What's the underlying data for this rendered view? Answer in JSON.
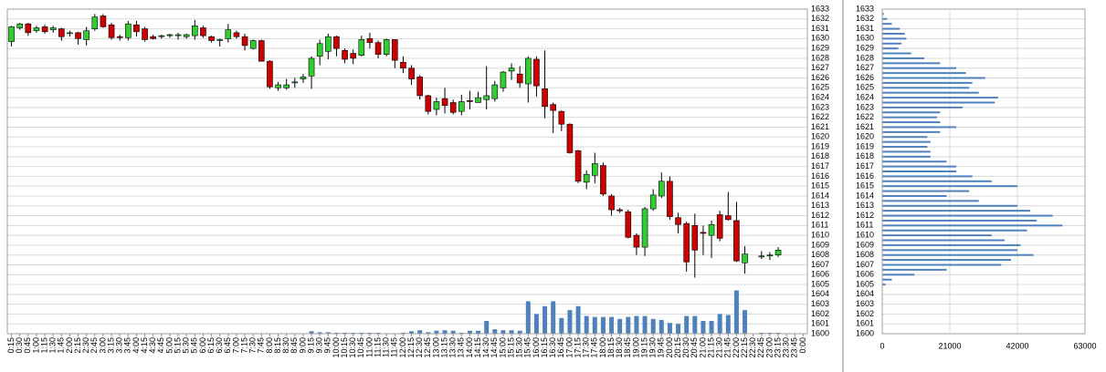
{
  "chart_data": [
    {
      "type": "candlestick",
      "categories": [
        "0:15",
        "0:30",
        "0:45",
        "1:00",
        "1:15",
        "1:30",
        "1:45",
        "2:00",
        "2:15",
        "2:30",
        "2:45",
        "3:00",
        "3:15",
        "3:30",
        "3:45",
        "4:00",
        "4:15",
        "4:30",
        "4:45",
        "5:00",
        "5:15",
        "5:30",
        "5:45",
        "6:00",
        "6:15",
        "6:30",
        "6:45",
        "7:00",
        "7:15",
        "7:30",
        "7:45",
        "8:00",
        "8:15",
        "8:30",
        "8:45",
        "9:00",
        "9:15",
        "9:30",
        "9:45",
        "10:00",
        "10:15",
        "10:30",
        "10:45",
        "11:00",
        "11:15",
        "11:30",
        "11:45",
        "12:00",
        "12:15",
        "12:30",
        "12:45",
        "13:00",
        "13:15",
        "13:30",
        "13:45",
        "14:00",
        "14:15",
        "14:30",
        "14:45",
        "15:00",
        "15:15",
        "15:30",
        "15:45",
        "16:00",
        "16:15",
        "16:30",
        "16:45",
        "17:00",
        "17:15",
        "17:30",
        "17:45",
        "18:00",
        "18:15",
        "18:30",
        "18:45",
        "19:00",
        "19:15",
        "19:30",
        "19:45",
        "20:00",
        "20:15",
        "20:30",
        "20:45",
        "21:00",
        "21:15",
        "21:30",
        "21:45",
        "22:00",
        "22:15",
        "22:30",
        "22:45",
        "23:00",
        "23:15",
        "23:30",
        "23:45",
        "0:00"
      ],
      "open": [
        1629.7,
        1631.1,
        1631.5,
        1630.8,
        1631.2,
        1630.9,
        1631.0,
        1630.6,
        1630.6,
        1629.9,
        1631.0,
        1632.3,
        1631.4,
        1630.2,
        1630.1,
        1631.4,
        1631.0,
        1630.2,
        1630.2,
        1630.3,
        1630.3,
        1630.2,
        1630.3,
        1631.1,
        1630.2,
        1629.9,
        1630.0,
        1630.6,
        1630.2,
        1629.0,
        1629.8,
        1627.7,
        1625.0,
        1625.0,
        1625.5,
        1625.9,
        1626.2,
        1628.2,
        1628.7,
        1630.2,
        1628.8,
        1628.5,
        1628.3,
        1630.0,
        1629.6,
        1628.4,
        1629.9,
        1627.6,
        1627.0,
        1626.1,
        1624.2,
        1622.8,
        1623.9,
        1623.5,
        1622.6,
        1623.7,
        1623.5,
        1623.8,
        1623.9,
        1625.0,
        1626.7,
        1626.4,
        1625.4,
        1627.9,
        1624.9,
        1623.3,
        1622.6,
        1621.3,
        1618.6,
        1615.4,
        1616.1,
        1617.1,
        1614.0,
        1612.6,
        1612.4,
        1610.0,
        1608.8,
        1612.7,
        1614.0,
        1615.5,
        1611.8,
        1611.2,
        1611.0,
        1610.3,
        1610.0,
        1612.1,
        1612.0,
        1611.5,
        1607.2,
        null,
        1607.8,
        1607.9,
        1608.0,
        null,
        null,
        null
      ],
      "high": [
        1631.3,
        1631.6,
        1631.6,
        1631.3,
        1631.4,
        1631.3,
        1631.1,
        1630.8,
        1630.7,
        1631.2,
        1632.5,
        1632.5,
        1631.6,
        1630.4,
        1631.8,
        1631.8,
        1631.2,
        1630.4,
        1630.4,
        1630.5,
        1630.6,
        1630.5,
        1631.9,
        1631.3,
        1630.3,
        1630.0,
        1631.5,
        1630.8,
        1630.5,
        1629.9,
        1629.9,
        1627.8,
        1625.6,
        1625.9,
        1626.0,
        1626.4,
        1628.2,
        1629.9,
        1630.5,
        1630.3,
        1629.0,
        1628.9,
        1630.3,
        1630.6,
        1629.8,
        1630.0,
        1629.9,
        1628.2,
        1627.3,
        1626.3,
        1624.3,
        1624.0,
        1625.0,
        1623.8,
        1624.3,
        1624.7,
        1624.6,
        1627.2,
        1625.7,
        1626.7,
        1627.5,
        1627.2,
        1628.2,
        1628.2,
        1628.8,
        1623.5,
        1622.7,
        1621.4,
        1618.7,
        1616.6,
        1618.4,
        1617.4,
        1614.2,
        1612.8,
        1612.6,
        1610.2,
        1612.9,
        1614.7,
        1616.4,
        1616.0,
        1612.3,
        1611.4,
        1612.2,
        1611.0,
        1611.5,
        1612.5,
        1614.4,
        1613.4,
        1608.9,
        null,
        1608.4,
        1608.3,
        1608.8,
        null,
        null,
        null
      ],
      "low": [
        1629.2,
        1630.9,
        1630.3,
        1630.6,
        1630.5,
        1630.6,
        1629.8,
        1630.2,
        1629.4,
        1629.3,
        1630.8,
        1631.1,
        1629.9,
        1629.8,
        1629.8,
        1630.2,
        1629.7,
        1629.9,
        1630.0,
        1630.1,
        1629.9,
        1630.0,
        1629.9,
        1630.1,
        1629.6,
        1629.2,
        1629.6,
        1630.0,
        1628.8,
        1628.9,
        1627.7,
        1624.9,
        1624.7,
        1624.8,
        1625.0,
        1625.5,
        1624.9,
        1627.3,
        1627.9,
        1628.2,
        1627.5,
        1627.4,
        1628.2,
        1629.0,
        1628.0,
        1628.2,
        1627.0,
        1626.5,
        1625.3,
        1623.8,
        1622.3,
        1622.2,
        1622.4,
        1622.3,
        1622.2,
        1622.8,
        1623.5,
        1622.8,
        1623.6,
        1624.6,
        1625.8,
        1625.0,
        1623.5,
        1624.1,
        1621.9,
        1620.4,
        1620.6,
        1618.3,
        1615.3,
        1614.7,
        1615.3,
        1614.0,
        1612.0,
        1612.3,
        1609.7,
        1608.0,
        1607.9,
        1612.5,
        1613.8,
        1611.6,
        1610.2,
        1606.3,
        1605.7,
        1608.0,
        1607.7,
        1609.4,
        1611.5,
        1607.3,
        1606.1,
        null,
        1607.6,
        1607.5,
        1607.8,
        null,
        null,
        null
      ],
      "close": [
        1631.2,
        1631.5,
        1630.6,
        1631.1,
        1630.7,
        1631.1,
        1630.2,
        1630.6,
        1630.0,
        1630.8,
        1632.2,
        1631.2,
        1630.1,
        1630.1,
        1631.5,
        1630.7,
        1629.9,
        1630.0,
        1630.3,
        1630.4,
        1630.4,
        1630.4,
        1631.3,
        1630.3,
        1629.8,
        1629.9,
        1630.9,
        1630.2,
        1629.3,
        1629.8,
        1627.7,
        1625.1,
        1625.3,
        1625.3,
        1625.6,
        1626.1,
        1628.0,
        1629.5,
        1630.2,
        1629.0,
        1627.9,
        1628.0,
        1629.9,
        1629.6,
        1628.4,
        1629.9,
        1627.8,
        1627.0,
        1625.9,
        1624.2,
        1622.6,
        1623.6,
        1623.2,
        1622.5,
        1623.6,
        1623.6,
        1624.0,
        1624.2,
        1625.3,
        1626.6,
        1627.0,
        1625.5,
        1628.0,
        1625.2,
        1623.1,
        1622.7,
        1621.3,
        1618.4,
        1615.5,
        1616.2,
        1617.3,
        1614.2,
        1612.6,
        1612.5,
        1609.8,
        1608.8,
        1612.7,
        1614.1,
        1615.5,
        1611.9,
        1611.1,
        1607.3,
        1608.5,
        1610.2,
        1611.1,
        1609.7,
        1611.6,
        1607.4,
        1608.1,
        null,
        1607.9,
        1608.0,
        1608.5,
        null,
        null,
        null
      ],
      "volume": [
        0.03,
        0.03,
        0.03,
        0.03,
        0.03,
        0.03,
        0.03,
        0.03,
        0.03,
        0.03,
        0.03,
        0.03,
        0.03,
        0.03,
        0.03,
        0.03,
        0.03,
        0.03,
        0.03,
        0.03,
        0.03,
        0.03,
        0.03,
        0.03,
        0.03,
        0.03,
        0.03,
        0.03,
        0.03,
        0.03,
        0.03,
        0.03,
        0.03,
        0.03,
        0.03,
        0.03,
        0.25,
        0.15,
        0.15,
        0.1,
        0.1,
        0.1,
        0.1,
        0.1,
        0.1,
        0.05,
        0.05,
        0.1,
        0.25,
        0.35,
        0.15,
        0.3,
        0.35,
        0.3,
        0.1,
        0.3,
        0.3,
        1.3,
        0.45,
        0.35,
        0.35,
        0.3,
        3.3,
        2.0,
        2.8,
        3.3,
        1.6,
        2.4,
        2.8,
        1.8,
        1.7,
        1.7,
        1.7,
        1.5,
        1.7,
        1.8,
        1.8,
        1.5,
        1.4,
        1.1,
        1.0,
        1.8,
        1.8,
        1.3,
        1.3,
        2.0,
        1.9,
        4.4,
        2.4,
        null,
        0.1,
        0.1,
        0.1,
        null,
        null,
        null
      ],
      "up_color": "#33cc33",
      "down_color": "#cc0000",
      "volume_color": "#4f81bd",
      "ylim": [
        1600,
        1633
      ],
      "yticks": [
        1600,
        1601,
        1602,
        1603,
        1604,
        1605,
        1606,
        1607,
        1608,
        1609,
        1610,
        1611,
        1612,
        1613,
        1614,
        1615,
        1616,
        1617,
        1618,
        1619,
        1620,
        1621,
        1622,
        1623,
        1624,
        1625,
        1626,
        1627,
        1628,
        1629,
        1630,
        1631,
        1632,
        1633
      ],
      "grid": true
    },
    {
      "type": "barh",
      "categories": [
        1632.5,
        1632,
        1631.5,
        1631,
        1630.5,
        1630,
        1629.5,
        1629,
        1628.5,
        1628,
        1627.5,
        1627,
        1626.5,
        1626,
        1625.5,
        1625,
        1624.5,
        1624,
        1623.5,
        1623,
        1622.5,
        1622,
        1621.5,
        1621,
        1620.5,
        1620,
        1619.5,
        1619,
        1618.5,
        1618,
        1617.5,
        1617,
        1616.5,
        1616,
        1615.5,
        1615,
        1614.5,
        1614,
        1613.5,
        1613,
        1612.5,
        1612,
        1611.5,
        1611,
        1610.5,
        1610,
        1609.5,
        1609,
        1608.5,
        1608,
        1607.5,
        1607,
        1606.5,
        1606,
        1605.5,
        1605
      ],
      "values": [
        500,
        1500,
        3000,
        5500,
        7000,
        7500,
        6000,
        5000,
        9000,
        13000,
        18000,
        23000,
        26000,
        32000,
        28000,
        27000,
        30000,
        36000,
        35000,
        25000,
        18000,
        17000,
        18000,
        23000,
        18000,
        14000,
        15000,
        14000,
        15000,
        15000,
        20000,
        23000,
        23000,
        28000,
        34000,
        42000,
        27000,
        20000,
        30000,
        42000,
        46000,
        53000,
        48000,
        56000,
        45000,
        34000,
        38000,
        43000,
        42000,
        47000,
        40000,
        37000,
        20000,
        10000,
        3000,
        1000
      ],
      "color": "#4f81bd",
      "xlim": [
        0,
        63000
      ],
      "xticks": [
        0,
        21000,
        42000,
        63000
      ],
      "ylim": [
        1600,
        1633
      ],
      "yticks": [
        1600,
        1601,
        1602,
        1603,
        1604,
        1605,
        1606,
        1607,
        1608,
        1609,
        1610,
        1611,
        1612,
        1613,
        1614,
        1615,
        1616,
        1617,
        1618,
        1619,
        1620,
        1621,
        1622,
        1623,
        1624,
        1625,
        1626,
        1627,
        1628,
        1629,
        1630,
        1631,
        1632,
        1633
      ],
      "grid": true
    }
  ]
}
